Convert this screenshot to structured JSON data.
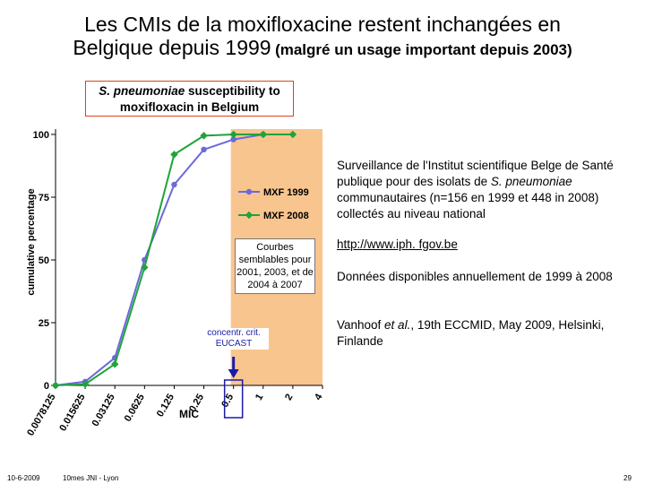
{
  "slide": {
    "title_line1": "Les CMIs de la moxifloxacine restent inchangées en",
    "title_line2": "Belgique depuis 1999",
    "title_line2_small": "(malgré un usage important depuis 2003)",
    "footer_date": "10-6-2009",
    "footer_event": "10mes JNI - Lyon",
    "page_number": "29"
  },
  "chart_box": {
    "species": "S. pneumoniae",
    "rest_line1": "susceptibility to",
    "line2": "moxifloxacin in Belgium"
  },
  "annotations": {
    "similar_curves": "Courbes semblables pour 2001, 2003, et de 2004 à 2007",
    "eucast": "concentr. crit. EUCAST"
  },
  "side_text": {
    "p1_a": "Surveillance de l'Institut scientifique Belge de Santé publique pour des isolats de ",
    "p1_ital": "S. pneumoniae",
    "p1_b": " communautaires (n=156 en 1999 et 448 in 2008) collectés au niveau national",
    "link": "http://www.iph. fgov.be",
    "p2": "Données disponibles annuellement de 1999 à 2008",
    "p3_a": "Vanhoof ",
    "p3_ital": "et al.",
    "p3_b": ", 19th ECCMID, May 2009, Helsinki, Finlande"
  },
  "colors": {
    "mxf1999": "#6a6ad8",
    "mxf2008": "#1fa43a",
    "resistant_zone": "#f9c58f",
    "title_box_border": "#d6461a",
    "eucast_text": "#1a1aa8",
    "arrow": "#1a1aa8"
  },
  "chart_data": {
    "type": "line",
    "title": "S. pneumoniae susceptibility to moxifloxacin in Belgium",
    "xlabel": "MIC",
    "ylabel": "cumulative percentage",
    "categories": [
      "0.0078125",
      "0.015625",
      "0.03125",
      "0.0625",
      "0.125",
      "0.25",
      "0.5",
      "1",
      "2",
      "4"
    ],
    "ylim": [
      0,
      100
    ],
    "yticks": [
      "0",
      "25",
      "50",
      "75",
      "100"
    ],
    "series": [
      {
        "name": "MXF 1999",
        "values": [
          0,
          1.5,
          11,
          50,
          80,
          94,
          98,
          100,
          null,
          null
        ]
      },
      {
        "name": "MXF 2008",
        "values": [
          0,
          0.5,
          8.5,
          47,
          92,
          99.5,
          100,
          100,
          100,
          null
        ]
      }
    ],
    "legend_position": "right",
    "shaded_region_from": "0.5",
    "breakpoint_marker": "0.5"
  }
}
